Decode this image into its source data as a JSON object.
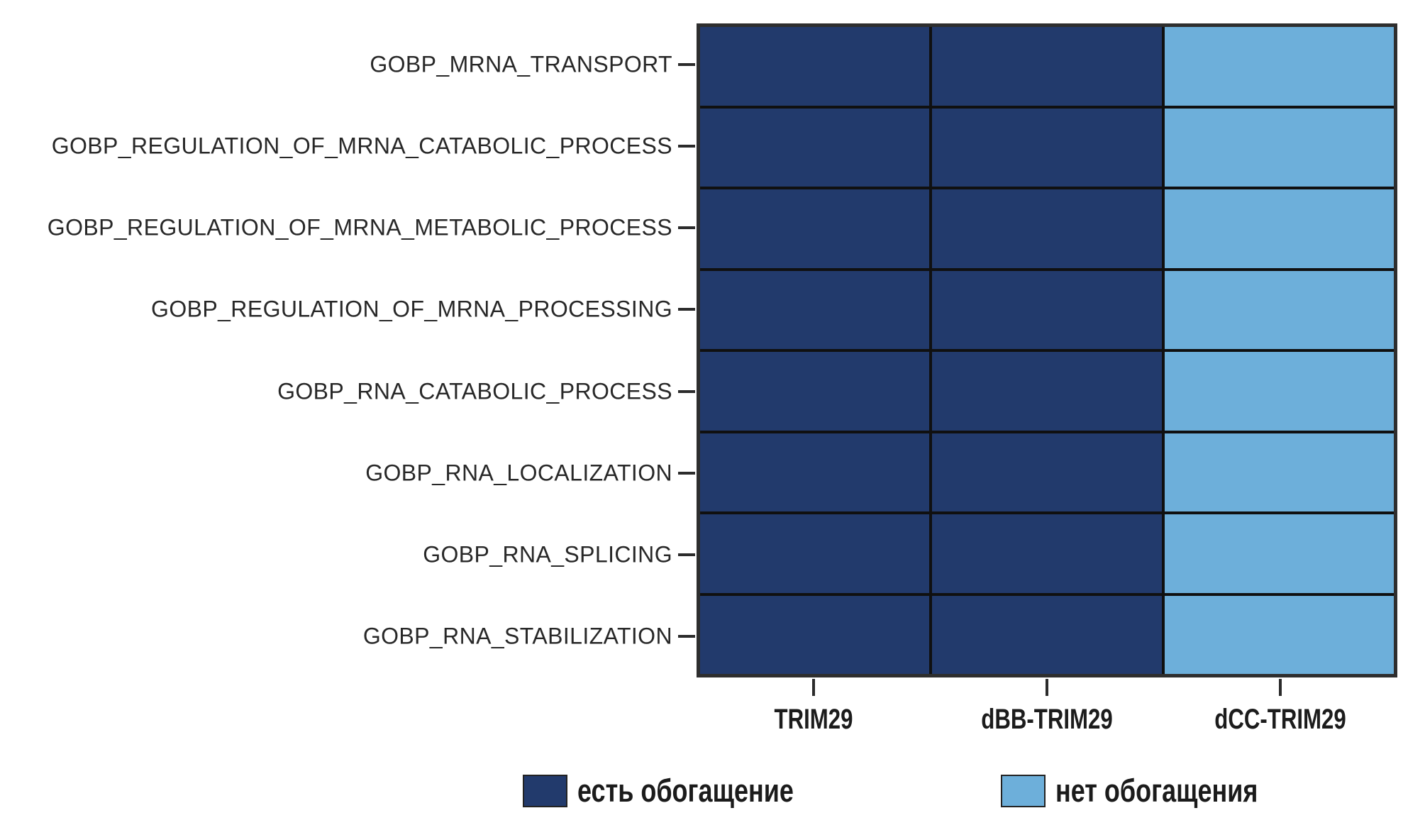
{
  "figure": {
    "background": "#ffffff"
  },
  "chart_data": {
    "type": "heatmap",
    "title": "",
    "xlabel": "",
    "ylabel": "",
    "rows": [
      "GOBP_MRNA_TRANSPORT",
      "GOBP_REGULATION_OF_MRNA_CATABOLIC_PROCESS",
      "GOBP_REGULATION_OF_MRNA_METABOLIC_PROCESS",
      "GOBP_REGULATION_OF_MRNA_PROCESSING",
      "GOBP_RNA_CATABOLIC_PROCESS",
      "GOBP_RNA_LOCALIZATION",
      "GOBP_RNA_SPLICING",
      "GOBP_RNA_STABILIZATION"
    ],
    "columns": [
      "TRIM29",
      "dBB-TRIM29",
      "dCC-TRIM29"
    ],
    "values": [
      [
        1,
        1,
        0
      ],
      [
        1,
        1,
        0
      ],
      [
        1,
        1,
        0
      ],
      [
        1,
        1,
        0
      ],
      [
        1,
        1,
        0
      ],
      [
        1,
        1,
        0
      ],
      [
        1,
        1,
        0
      ],
      [
        1,
        1,
        0
      ]
    ],
    "colors": {
      "enriched": "#223a6c",
      "not_enriched": "#6dafda",
      "grid_line": "#101010",
      "outer_border": "#2e2e2e"
    },
    "legend": [
      {
        "label": "есть обогащение",
        "value": 1,
        "color": "#223a6c"
      },
      {
        "label": "нет обогащения",
        "value": 0,
        "color": "#6dafda"
      }
    ],
    "legend_position": "bottom",
    "grid": "on"
  }
}
